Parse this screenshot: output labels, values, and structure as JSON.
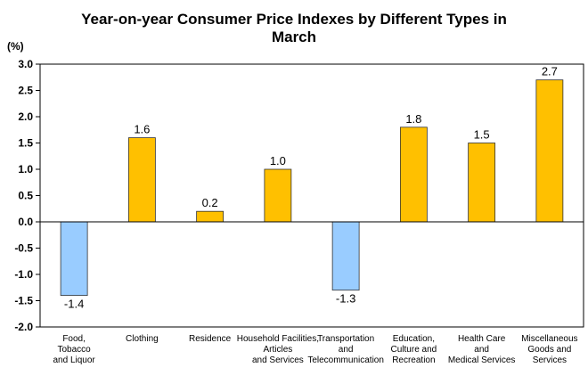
{
  "chart_data": {
    "type": "bar",
    "title_lines": [
      "Year-on-year Consumer Price Indexes by Different Types in",
      "March"
    ],
    "ylabel": "(%)",
    "ylim": [
      -2.0,
      3.0
    ],
    "y_ticks": [
      "3.0",
      "2.5",
      "2.0",
      "1.5",
      "1.0",
      "0.5",
      "0.0",
      "-0.5",
      "-1.0",
      "-1.5",
      "-2.0"
    ],
    "y_tick_values": [
      3.0,
      2.5,
      2.0,
      1.5,
      1.0,
      0.5,
      0.0,
      -0.5,
      -1.0,
      -1.5,
      -2.0
    ],
    "categories": [
      [
        "Food,",
        "Tobacco",
        "and Liquor"
      ],
      [
        "Clothing"
      ],
      [
        "Residence"
      ],
      [
        "Household Facilities,",
        "Articles",
        "and Services"
      ],
      [
        "Transportation",
        "and",
        "Telecommunication"
      ],
      [
        "Education,",
        "Culture and",
        "Recreation"
      ],
      [
        "Health Care",
        "and",
        "Medical Services"
      ],
      [
        "Miscellaneous",
        "Goods and",
        "Services"
      ]
    ],
    "values": [
      -1.4,
      1.6,
      0.2,
      1.0,
      -1.3,
      1.8,
      1.5,
      2.7
    ],
    "value_labels": [
      "-1.4",
      "1.6",
      "0.2",
      "1.0",
      "-1.3",
      "1.8",
      "1.5",
      "2.7"
    ],
    "colors": {
      "positive": "#FFC000",
      "negative": "#99CCFF",
      "border": "#333333"
    },
    "grid": false,
    "legend": "none"
  }
}
